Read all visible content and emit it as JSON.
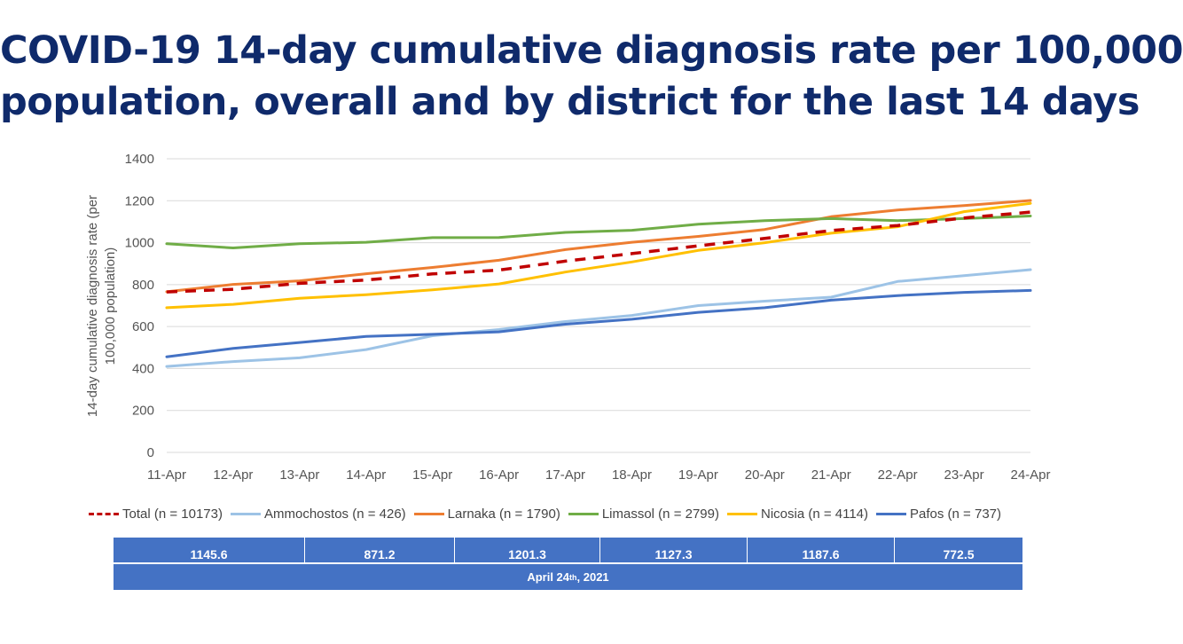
{
  "title_lines": [
    "COVID-19 14-day cumulative diagnosis rate per 100,000",
    "population, overall and by district for the last 14 days"
  ],
  "chart_data": {
    "type": "line",
    "ylabel": "14-day cumulative diagnosis rate (per 100,000 population)",
    "ylim": [
      0,
      1400
    ],
    "yticks": [
      0,
      200,
      400,
      600,
      800,
      1000,
      1200,
      1400
    ],
    "grid": true,
    "legend_position": "bottom",
    "categories": [
      "11-Apr",
      "12-Apr",
      "13-Apr",
      "14-Apr",
      "15-Apr",
      "16-Apr",
      "17-Apr",
      "18-Apr",
      "19-Apr",
      "20-Apr",
      "21-Apr",
      "22-Apr",
      "23-Apr",
      "24-Apr"
    ],
    "series": [
      {
        "name": "Total (n = 10173)",
        "color": "#c00000",
        "dashed": true,
        "values": [
          765,
          778,
          806,
          822,
          851,
          869,
          912,
          948,
          985,
          1020,
          1058,
          1082,
          1118,
          1145.6
        ]
      },
      {
        "name": "Ammochostos (n = 426)",
        "color": "#9dc3e6",
        "dashed": false,
        "values": [
          410,
          433,
          451,
          490,
          556,
          586,
          624,
          653,
          700,
          721,
          740,
          815,
          843,
          871.2
        ]
      },
      {
        "name": "Larnaka (n = 1790)",
        "color": "#ed7d31",
        "dashed": false,
        "values": [
          766,
          801,
          818,
          852,
          882,
          916,
          967,
          1002,
          1030,
          1063,
          1124,
          1156,
          1177,
          1201.3
        ]
      },
      {
        "name": "Limassol (n = 2799)",
        "color": "#70ad47",
        "dashed": false,
        "values": [
          995,
          975,
          995,
          1002,
          1024,
          1025,
          1049,
          1059,
          1088,
          1105,
          1115,
          1105,
          1115,
          1127.3
        ]
      },
      {
        "name": "Nicosia (n = 4114)",
        "color": "#ffc000",
        "dashed": false,
        "values": [
          690,
          706,
          735,
          752,
          775,
          803,
          860,
          908,
          963,
          1000,
          1045,
          1076,
          1148,
          1187.6
        ]
      },
      {
        "name": "Pafos (n = 737)",
        "color": "#4472c4",
        "dashed": false,
        "values": [
          456,
          496,
          524,
          553,
          563,
          575,
          611,
          635,
          668,
          690,
          726,
          748,
          763,
          772.5
        ]
      }
    ]
  },
  "summary_values": [
    "1145.6",
    "871.2",
    "1201.3",
    "1127.3",
    "1187.6",
    "772.5"
  ],
  "summary_date": {
    "main": "April 24",
    "sup": "th",
    "rest": ", 2021"
  }
}
